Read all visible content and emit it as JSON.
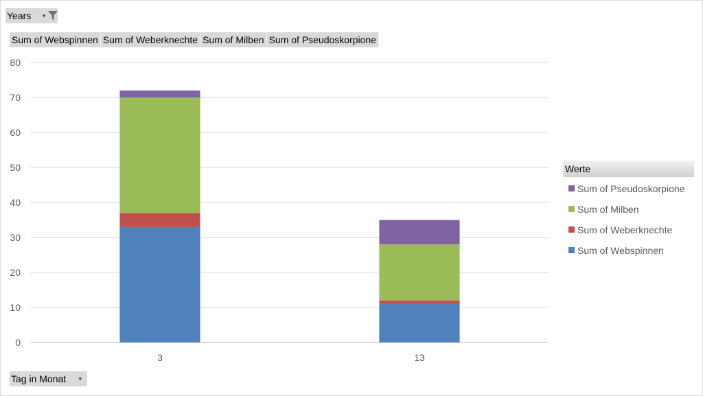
{
  "filter": {
    "label": "Years",
    "dropdown_glyph": "▾",
    "icon": "filter-icon"
  },
  "value_fields": [
    "Sum of Webspinnen",
    "Sum of Weberknechte",
    "Sum of Milben",
    "Sum of Pseudoskorpione"
  ],
  "axis_field": {
    "label": "Tag in Monat",
    "dropdown_glyph": "▾"
  },
  "legend": {
    "title": "Werte"
  },
  "chart_data": {
    "type": "bar",
    "stacked": true,
    "categories": [
      "3",
      "13"
    ],
    "series": [
      {
        "name": "Sum of Webspinnen",
        "color": "#4f81bd",
        "values": [
          33,
          11
        ]
      },
      {
        "name": "Sum of Weberknechte",
        "color": "#c0504d",
        "values": [
          4,
          1
        ]
      },
      {
        "name": "Sum of Milben",
        "color": "#9bbb59",
        "values": [
          33,
          16
        ]
      },
      {
        "name": "Sum of Pseudoskorpione",
        "color": "#8064a2",
        "values": [
          2,
          7
        ]
      }
    ],
    "ylim": [
      0,
      80
    ],
    "yticks": [
      0,
      10,
      20,
      30,
      40,
      50,
      60,
      70,
      80
    ],
    "grid": true,
    "legend_position": "right",
    "legend_order": "reversed"
  }
}
